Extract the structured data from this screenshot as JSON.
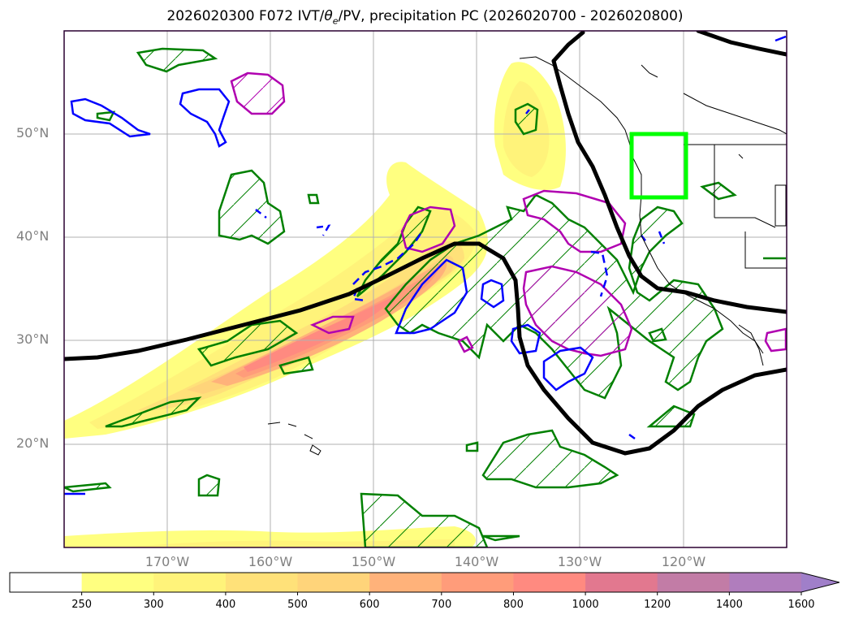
{
  "title": {
    "prefix": "2026020300 F072 IVT/",
    "theta": "θ",
    "theta_sub": "e",
    "suffix": "/PV, precipitation PC (2026020700 - 2026020800)"
  },
  "map": {
    "lat_labels": [
      "50°N",
      "40°N",
      "30°N",
      "20°N"
    ],
    "lon_labels": [
      "170°W",
      "160°W",
      "150°W",
      "140°W",
      "130°W",
      "120°W"
    ],
    "region_box_color": "#00ff00",
    "contour_colors": {
      "precip_pc": "#008000",
      "theta_e_pos": "#b000b0",
      "theta_e_neg": "#0000ff",
      "pv": "#000000"
    }
  },
  "colorbar": {
    "ticks": [
      "250",
      "300",
      "400",
      "500",
      "600",
      "700",
      "800",
      "1000",
      "1200",
      "1400",
      "1600"
    ],
    "colors": [
      "#ffffff",
      "#ffff80",
      "#fff37a",
      "#ffe179",
      "#ffd47a",
      "#ffb27a",
      "#ff9c7a",
      "#ff8a80",
      "#e2788f",
      "#c27ca6",
      "#b07dbd",
      "#a07fc9"
    ],
    "extend": "max"
  }
}
